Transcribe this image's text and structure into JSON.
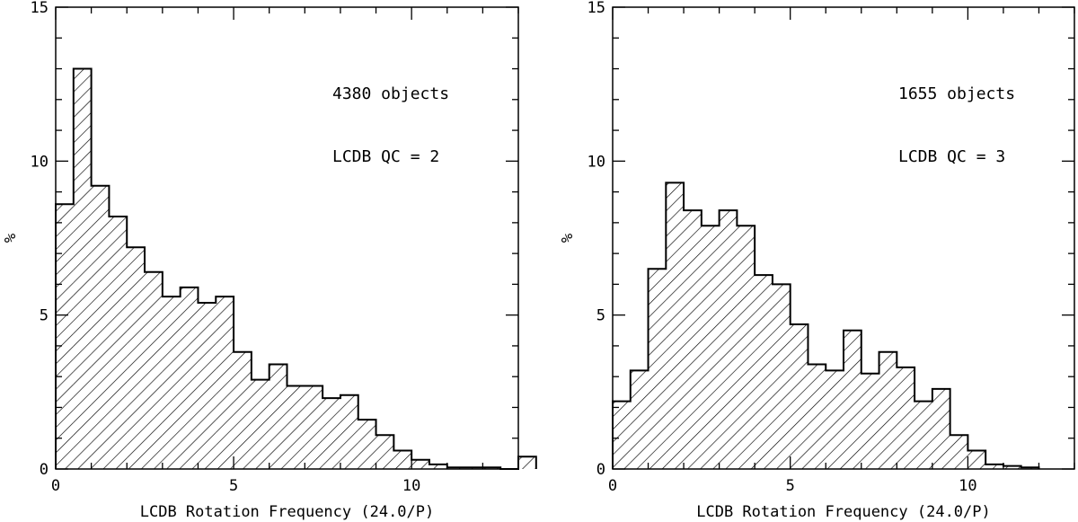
{
  "chart_data": [
    {
      "type": "bar",
      "subtype": "histogram",
      "xlabel": "LCDB Rotation Frequency (24.0/P)",
      "ylabel": "%",
      "xlim": [
        0,
        13
      ],
      "ylim": [
        0,
        15
      ],
      "xticks": [
        "0",
        "5",
        "10"
      ],
      "yticks": [
        "0",
        "5",
        "10",
        "15"
      ],
      "bin_width": 0.5,
      "bin_start": 0,
      "values": [
        8.6,
        13.0,
        9.2,
        8.2,
        7.2,
        6.4,
        5.6,
        5.9,
        5.4,
        5.6,
        3.8,
        2.9,
        3.4,
        2.7,
        2.7,
        2.3,
        2.4,
        1.6,
        1.1,
        0.6,
        0.3,
        0.15,
        0.05,
        0.05,
        0.05,
        0.0,
        0.4
      ],
      "fill": "diagonal hatching",
      "annotations": [
        "4380 objects",
        "LCDB QC = 2"
      ],
      "grid": false
    },
    {
      "type": "bar",
      "subtype": "histogram",
      "xlabel": "LCDB Rotation Frequency (24.0/P)",
      "ylabel": "%",
      "xlim": [
        0,
        13
      ],
      "ylim": [
        0,
        15
      ],
      "xticks": [
        "0",
        "5",
        "10"
      ],
      "yticks": [
        "0",
        "5",
        "10",
        "15"
      ],
      "bin_width": 0.5,
      "bin_start": 0,
      "values": [
        2.2,
        3.2,
        6.5,
        9.3,
        8.4,
        7.9,
        8.4,
        7.9,
        6.3,
        6.0,
        4.7,
        3.4,
        3.2,
        4.5,
        3.1,
        3.8,
        3.3,
        2.2,
        2.6,
        1.1,
        0.6,
        0.15,
        0.1,
        0.05
      ],
      "fill": "diagonal hatching",
      "annotations": [
        "1655 objects",
        "LCDB QC = 3"
      ],
      "grid": false
    }
  ]
}
